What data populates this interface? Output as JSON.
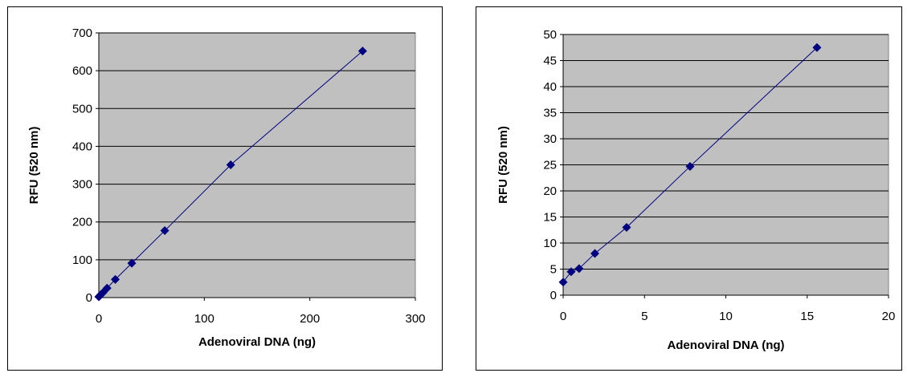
{
  "chart_data": [
    {
      "type": "scatter",
      "xlabel": "Adenoviral DNA (ng)",
      "ylabel": "RFU (520 nm)",
      "xlim": [
        0,
        300
      ],
      "ylim": [
        0,
        700
      ],
      "xticks": [
        0,
        100,
        200,
        300
      ],
      "yticks": [
        0,
        100,
        200,
        300,
        400,
        500,
        600,
        700
      ],
      "grid": "horizontal",
      "colors": {
        "plot_bg": "#c0c0c0",
        "series": "#000080",
        "grid": "#000000"
      },
      "series": [
        {
          "x": [
            0,
            0.98,
            1.95,
            3.9,
            7.8,
            15.6,
            31.25,
            62.5,
            125,
            250
          ],
          "y": [
            2,
            5,
            8,
            13,
            25,
            48,
            91,
            177,
            351,
            652
          ]
        }
      ]
    },
    {
      "type": "scatter",
      "xlabel": "Adenoviral DNA (ng)",
      "ylabel": "RFU (520 nm)",
      "xlim": [
        0,
        20
      ],
      "ylim": [
        0,
        50
      ],
      "xticks": [
        0,
        5,
        10,
        15,
        20
      ],
      "yticks": [
        0,
        5,
        10,
        15,
        20,
        25,
        30,
        35,
        40,
        45,
        50
      ],
      "grid": "horizontal",
      "colors": {
        "plot_bg": "#c0c0c0",
        "series": "#000080",
        "grid": "#000000"
      },
      "series": [
        {
          "x": [
            0,
            0.49,
            0.98,
            1.95,
            3.9,
            7.8,
            15.6
          ],
          "y": [
            2.5,
            4.5,
            5.1,
            8,
            13,
            24.7,
            47.5
          ]
        }
      ]
    }
  ]
}
